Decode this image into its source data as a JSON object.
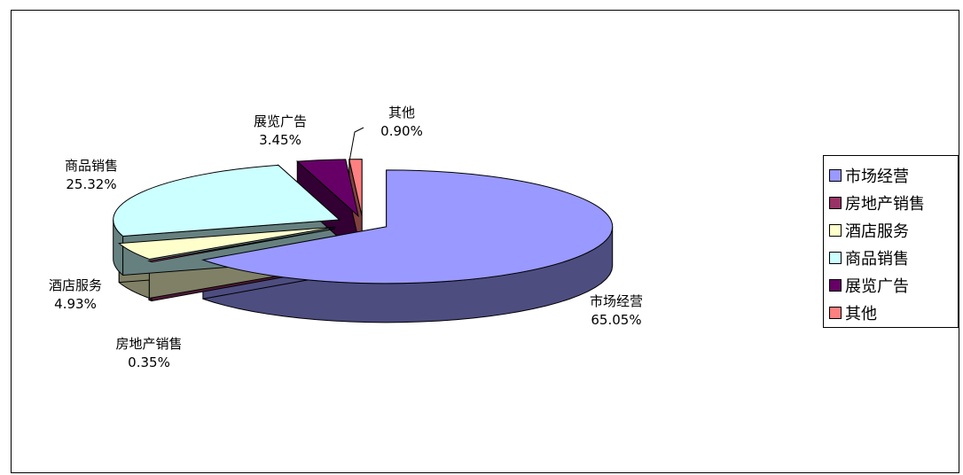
{
  "chart_data": {
    "type": "pie",
    "title": "",
    "categories": [
      "市场经营",
      "房地产销售",
      "酒店服务",
      "商品销售",
      "展览广告",
      "其他"
    ],
    "values": [
      65.05,
      0.35,
      4.93,
      25.32,
      3.45,
      0.9
    ],
    "value_labels": [
      "65.05%",
      "0.35%",
      "4.93%",
      "25.32%",
      "3.45%",
      "0.90%"
    ],
    "colors": [
      "#9999ff",
      "#993366",
      "#ffffcc",
      "#ccffff",
      "#660066",
      "#ff8080"
    ],
    "side_colors": [
      "#4d4d80",
      "#4d1a33",
      "#808066",
      "#668080",
      "#330033",
      "#804040"
    ],
    "style": "3d-exploded",
    "legend": {
      "placement": "right",
      "items": [
        "市场经营",
        "房地产销售",
        "酒店服务",
        "商品销售",
        "展览广告",
        "其他"
      ]
    }
  }
}
